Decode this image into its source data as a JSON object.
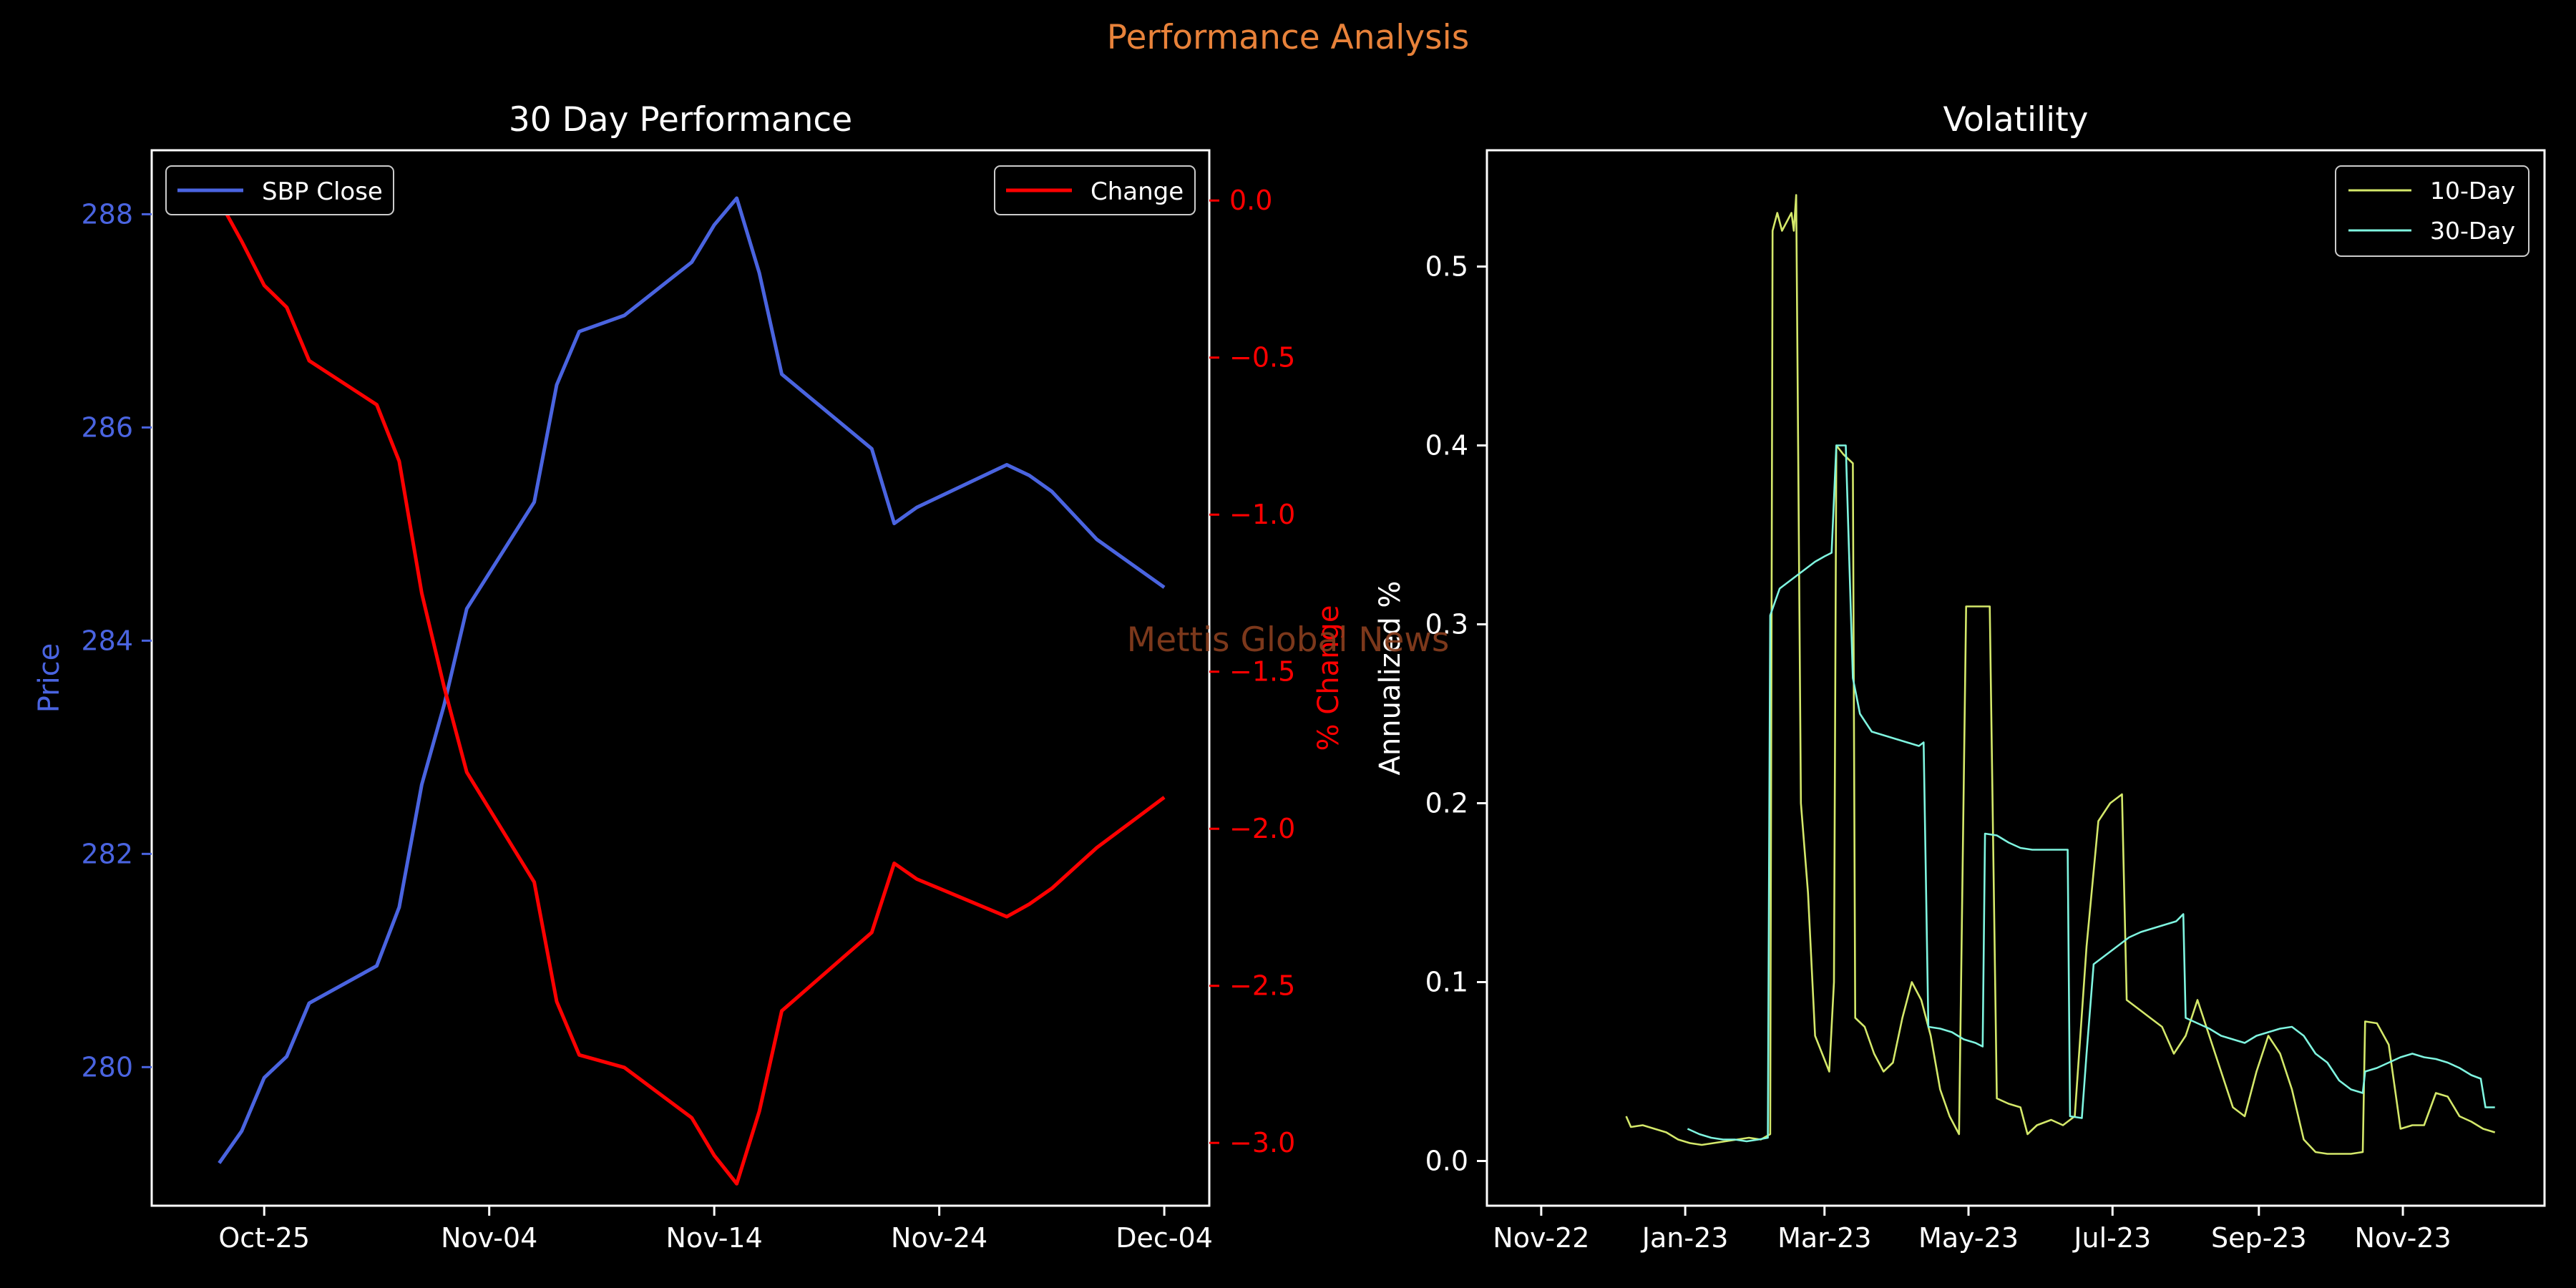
{
  "figure": {
    "suptitle": "Performance Analysis",
    "watermark": "Mettis Global News",
    "colors": {
      "background": "#000000",
      "suptitle": "#e8823a",
      "watermark": "#8a3f1f",
      "price": "#4a64e0",
      "change": "#ff0000",
      "vol10": "#d4e86a",
      "vol30": "#7ff5e0",
      "axes": "#ffffff"
    }
  },
  "chart_data": [
    {
      "type": "line",
      "title": "30 Day Performance",
      "xlabel": "",
      "ylabel": "Price",
      "ylabel_right": "% Change",
      "x_ticks": [
        "Oct-25",
        "Nov-04",
        "Nov-14",
        "Nov-24",
        "Dec-04"
      ],
      "y_ticks": [
        "280",
        "282",
        "284",
        "286",
        "288"
      ],
      "y_right_ticks": [
        "0.0",
        "−0.5",
        "−1.0",
        "−1.5",
        "−2.0",
        "−2.5",
        "−3.0"
      ],
      "xlim": [
        "2023-10-20",
        "2023-12-06"
      ],
      "ylim": [
        278.7,
        288.6
      ],
      "ylim_right": [
        -3.2,
        0.16
      ],
      "legend_left": "top-left",
      "legend_right": "top-right",
      "grid": false,
      "series": [
        {
          "name": "SBP Close",
          "axis": "left",
          "color_key": "price",
          "points": [
            [
              "2023-10-23",
              279.1
            ],
            [
              "2023-10-24",
              279.4
            ],
            [
              "2023-10-25",
              279.9
            ],
            [
              "2023-10-26",
              280.1
            ],
            [
              "2023-10-27",
              280.6
            ],
            [
              "2023-10-30",
              280.95
            ],
            [
              "2023-10-31",
              281.5
            ],
            [
              "2023-11-01",
              282.65
            ],
            [
              "2023-11-02",
              283.4
            ],
            [
              "2023-11-03",
              284.3
            ],
            [
              "2023-11-06",
              285.3
            ],
            [
              "2023-11-07",
              286.4
            ],
            [
              "2023-11-08",
              286.9
            ],
            [
              "2023-11-10",
              287.05
            ],
            [
              "2023-11-13",
              287.55
            ],
            [
              "2023-11-14",
              287.9
            ],
            [
              "2023-11-15",
              288.15
            ],
            [
              "2023-11-16",
              287.45
            ],
            [
              "2023-11-17",
              286.5
            ],
            [
              "2023-11-21",
              285.8
            ],
            [
              "2023-11-22",
              285.1
            ],
            [
              "2023-11-23",
              285.25
            ],
            [
              "2023-11-24",
              285.35
            ],
            [
              "2023-11-27",
              285.65
            ],
            [
              "2023-11-28",
              285.55
            ],
            [
              "2023-11-29",
              285.4
            ],
            [
              "2023-12-01",
              284.95
            ],
            [
              "2023-12-04",
              284.5
            ]
          ]
        },
        {
          "name": "Change",
          "axis": "right",
          "color_key": "change",
          "points": [
            [
              "2023-10-23",
              0.0
            ],
            [
              "2023-10-24",
              -0.13
            ],
            [
              "2023-10-25",
              -0.27
            ],
            [
              "2023-10-26",
              -0.34
            ],
            [
              "2023-10-27",
              -0.51
            ],
            [
              "2023-10-30",
              -0.65
            ],
            [
              "2023-10-31",
              -0.83
            ],
            [
              "2023-11-01",
              -1.25
            ],
            [
              "2023-11-02",
              -1.55
            ],
            [
              "2023-11-03",
              -1.82
            ],
            [
              "2023-11-06",
              -2.17
            ],
            [
              "2023-11-07",
              -2.55
            ],
            [
              "2023-11-08",
              -2.72
            ],
            [
              "2023-11-10",
              -2.76
            ],
            [
              "2023-11-13",
              -2.92
            ],
            [
              "2023-11-14",
              -3.04
            ],
            [
              "2023-11-15",
              -3.13
            ],
            [
              "2023-11-16",
              -2.9
            ],
            [
              "2023-11-17",
              -2.58
            ],
            [
              "2023-11-21",
              -2.33
            ],
            [
              "2023-11-22",
              -2.11
            ],
            [
              "2023-11-23",
              -2.16
            ],
            [
              "2023-11-24",
              -2.19
            ],
            [
              "2023-11-27",
              -2.28
            ],
            [
              "2023-11-28",
              -2.24
            ],
            [
              "2023-11-29",
              -2.19
            ],
            [
              "2023-12-01",
              -2.06
            ],
            [
              "2023-12-04",
              -1.9
            ]
          ]
        }
      ]
    },
    {
      "type": "line",
      "title": "Volatility",
      "xlabel": "",
      "ylabel": "Annualized %",
      "x_ticks": [
        "Nov-22",
        "Jan-23",
        "Mar-23",
        "May-23",
        "Jul-23",
        "Sep-23",
        "Nov-23"
      ],
      "y_ticks": [
        "0.0",
        "0.1",
        "0.2",
        "0.3",
        "0.4",
        "0.5"
      ],
      "xlim": [
        "2022-10-09",
        "2023-12-31"
      ],
      "ylim": [
        -0.025,
        0.565
      ],
      "legend": "top-right",
      "grid": false,
      "series": [
        {
          "name": "10-Day",
          "color_key": "vol10",
          "points": [
            [
              "2022-12-07",
              0.025
            ],
            [
              "2022-12-09",
              0.019
            ],
            [
              "2022-12-14",
              0.02
            ],
            [
              "2022-12-19",
              0.018
            ],
            [
              "2022-12-24",
              0.016
            ],
            [
              "2022-12-29",
              0.012
            ],
            [
              "2023-01-03",
              0.01
            ],
            [
              "2023-01-08",
              0.009
            ],
            [
              "2023-01-13",
              0.01
            ],
            [
              "2023-01-18",
              0.011
            ],
            [
              "2023-01-23",
              0.012
            ],
            [
              "2023-01-28",
              0.013
            ],
            [
              "2023-02-02",
              0.012
            ],
            [
              "2023-02-06",
              0.015
            ],
            [
              "2023-02-07",
              0.52
            ],
            [
              "2023-02-09",
              0.53
            ],
            [
              "2023-02-11",
              0.52
            ],
            [
              "2023-02-13",
              0.525
            ],
            [
              "2023-02-15",
              0.53
            ],
            [
              "2023-02-16",
              0.52
            ],
            [
              "2023-02-17",
              0.54
            ],
            [
              "2023-02-19",
              0.2
            ],
            [
              "2023-02-22",
              0.15
            ],
            [
              "2023-02-25",
              0.07
            ],
            [
              "2023-02-28",
              0.06
            ],
            [
              "2023-03-03",
              0.05
            ],
            [
              "2023-03-05",
              0.1
            ],
            [
              "2023-03-06",
              0.4
            ],
            [
              "2023-03-09",
              0.395
            ],
            [
              "2023-03-13",
              0.39
            ],
            [
              "2023-03-14",
              0.08
            ],
            [
              "2023-03-18",
              0.075
            ],
            [
              "2023-03-22",
              0.06
            ],
            [
              "2023-03-26",
              0.05
            ],
            [
              "2023-03-30",
              0.055
            ],
            [
              "2023-04-03",
              0.08
            ],
            [
              "2023-04-07",
              0.1
            ],
            [
              "2023-04-11",
              0.09
            ],
            [
              "2023-04-15",
              0.07
            ],
            [
              "2023-04-19",
              0.04
            ],
            [
              "2023-04-23",
              0.025
            ],
            [
              "2023-04-27",
              0.015
            ],
            [
              "2023-04-30",
              0.31
            ],
            [
              "2023-05-05",
              0.31
            ],
            [
              "2023-05-10",
              0.31
            ],
            [
              "2023-05-13",
              0.035
            ],
            [
              "2023-05-18",
              0.032
            ],
            [
              "2023-05-23",
              0.03
            ],
            [
              "2023-05-26",
              0.015
            ],
            [
              "2023-05-30",
              0.02
            ],
            [
              "2023-06-05",
              0.023
            ],
            [
              "2023-06-10",
              0.02
            ],
            [
              "2023-06-15",
              0.025
            ],
            [
              "2023-06-20",
              0.12
            ],
            [
              "2023-06-25",
              0.19
            ],
            [
              "2023-06-30",
              0.2
            ],
            [
              "2023-07-05",
              0.205
            ],
            [
              "2023-07-07",
              0.09
            ],
            [
              "2023-07-12",
              0.085
            ],
            [
              "2023-07-17",
              0.08
            ],
            [
              "2023-07-22",
              0.075
            ],
            [
              "2023-07-27",
              0.06
            ],
            [
              "2023-08-01",
              0.07
            ],
            [
              "2023-08-06",
              0.09
            ],
            [
              "2023-08-11",
              0.07
            ],
            [
              "2023-08-16",
              0.05
            ],
            [
              "2023-08-21",
              0.03
            ],
            [
              "2023-08-26",
              0.025
            ],
            [
              "2023-08-31",
              0.05
            ],
            [
              "2023-09-05",
              0.07
            ],
            [
              "2023-09-10",
              0.06
            ],
            [
              "2023-09-15",
              0.04
            ],
            [
              "2023-09-20",
              0.012
            ],
            [
              "2023-09-25",
              0.005
            ],
            [
              "2023-09-30",
              0.004
            ],
            [
              "2023-10-05",
              0.004
            ],
            [
              "2023-10-10",
              0.004
            ],
            [
              "2023-10-15",
              0.005
            ],
            [
              "2023-10-16",
              0.078
            ],
            [
              "2023-10-21",
              0.077
            ],
            [
              "2023-10-26",
              0.065
            ],
            [
              "2023-10-31",
              0.018
            ],
            [
              "2023-11-05",
              0.02
            ],
            [
              "2023-11-10",
              0.02
            ],
            [
              "2023-11-15",
              0.038
            ],
            [
              "2023-11-20",
              0.036
            ],
            [
              "2023-11-25",
              0.025
            ],
            [
              "2023-11-30",
              0.022
            ],
            [
              "2023-12-05",
              0.018
            ],
            [
              "2023-12-10",
              0.016
            ]
          ]
        },
        {
          "name": "30-Day",
          "color_key": "vol30",
          "points": [
            [
              "2023-01-02",
              0.018
            ],
            [
              "2023-01-07",
              0.015
            ],
            [
              "2023-01-12",
              0.013
            ],
            [
              "2023-01-17",
              0.012
            ],
            [
              "2023-01-22",
              0.012
            ],
            [
              "2023-01-27",
              0.011
            ],
            [
              "2023-02-01",
              0.012
            ],
            [
              "2023-02-05",
              0.013
            ],
            [
              "2023-02-06",
              0.305
            ],
            [
              "2023-02-10",
              0.32
            ],
            [
              "2023-02-15",
              0.325
            ],
            [
              "2023-02-20",
              0.33
            ],
            [
              "2023-02-25",
              0.335
            ],
            [
              "2023-03-01",
              0.338
            ],
            [
              "2023-03-04",
              0.34
            ],
            [
              "2023-03-06",
              0.4
            ],
            [
              "2023-03-10",
              0.4
            ],
            [
              "2023-03-13",
              0.27
            ],
            [
              "2023-03-16",
              0.25
            ],
            [
              "2023-03-21",
              0.24
            ],
            [
              "2023-03-26",
              0.238
            ],
            [
              "2023-03-31",
              0.236
            ],
            [
              "2023-04-05",
              0.234
            ],
            [
              "2023-04-10",
              0.232
            ],
            [
              "2023-04-12",
              0.234
            ],
            [
              "2023-04-14",
              0.075
            ],
            [
              "2023-04-19",
              0.074
            ],
            [
              "2023-04-24",
              0.072
            ],
            [
              "2023-04-29",
              0.068
            ],
            [
              "2023-05-04",
              0.066
            ],
            [
              "2023-05-07",
              0.064
            ],
            [
              "2023-05-08",
              0.183
            ],
            [
              "2023-05-13",
              0.182
            ],
            [
              "2023-05-18",
              0.178
            ],
            [
              "2023-05-23",
              0.175
            ],
            [
              "2023-05-28",
              0.174
            ],
            [
              "2023-06-02",
              0.174
            ],
            [
              "2023-06-07",
              0.174
            ],
            [
              "2023-06-12",
              0.174
            ],
            [
              "2023-06-13",
              0.025
            ],
            [
              "2023-06-18",
              0.024
            ],
            [
              "2023-06-20",
              0.06
            ],
            [
              "2023-06-23",
              0.11
            ],
            [
              "2023-06-28",
              0.115
            ],
            [
              "2023-07-03",
              0.12
            ],
            [
              "2023-07-08",
              0.125
            ],
            [
              "2023-07-13",
              0.128
            ],
            [
              "2023-07-18",
              0.13
            ],
            [
              "2023-07-23",
              0.132
            ],
            [
              "2023-07-28",
              0.134
            ],
            [
              "2023-07-31",
              0.138
            ],
            [
              "2023-08-01",
              0.08
            ],
            [
              "2023-08-06",
              0.077
            ],
            [
              "2023-08-11",
              0.074
            ],
            [
              "2023-08-16",
              0.07
            ],
            [
              "2023-08-21",
              0.068
            ],
            [
              "2023-08-26",
              0.066
            ],
            [
              "2023-08-31",
              0.07
            ],
            [
              "2023-09-05",
              0.072
            ],
            [
              "2023-09-10",
              0.074
            ],
            [
              "2023-09-15",
              0.075
            ],
            [
              "2023-09-20",
              0.07
            ],
            [
              "2023-09-25",
              0.06
            ],
            [
              "2023-09-30",
              0.055
            ],
            [
              "2023-10-05",
              0.045
            ],
            [
              "2023-10-10",
              0.04
            ],
            [
              "2023-10-15",
              0.038
            ],
            [
              "2023-10-16",
              0.05
            ],
            [
              "2023-10-21",
              0.052
            ],
            [
              "2023-10-26",
              0.055
            ],
            [
              "2023-10-31",
              0.058
            ],
            [
              "2023-11-05",
              0.06
            ],
            [
              "2023-11-10",
              0.058
            ],
            [
              "2023-11-15",
              0.057
            ],
            [
              "2023-11-20",
              0.055
            ],
            [
              "2023-11-25",
              0.052
            ],
            [
              "2023-11-30",
              0.048
            ],
            [
              "2023-12-04",
              0.046
            ],
            [
              "2023-12-06",
              0.03
            ],
            [
              "2023-12-10",
              0.03
            ]
          ]
        }
      ]
    }
  ]
}
